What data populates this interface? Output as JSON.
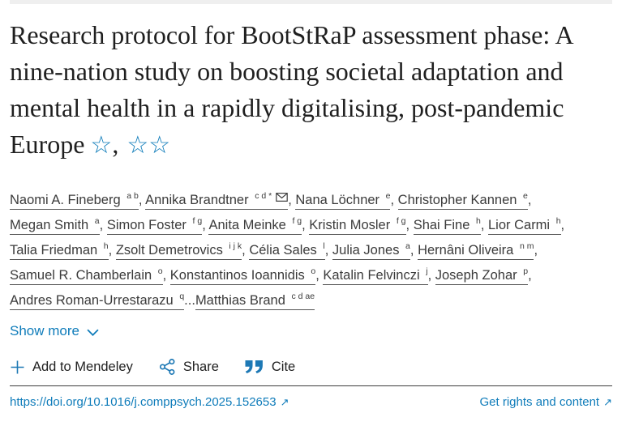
{
  "header": {
    "title": "Research protocol for BootStRaP assessment phase: A nine-nation study on boosting societal adaptation and mental health in a rapidly digitalising, post-pandemic Europe",
    "footnote_star": "☆",
    "footnote_sep": ", ",
    "footnote_star_double": "☆☆"
  },
  "authors": {
    "show_more_label": "Show more",
    "list": [
      {
        "name": "Naomi A. Fineberg",
        "sup": "a b",
        "sep": ", "
      },
      {
        "name": "Annika Brandtner",
        "sup": "c d *",
        "envelope": true,
        "sep": ", "
      },
      {
        "name": "Nana Löchner",
        "sup": "e",
        "sep": ", "
      },
      {
        "name": "Christopher Kannen",
        "sup": "e",
        "sep": ", "
      },
      {
        "name": "Megan Smith",
        "sup": "a",
        "sep": ", "
      },
      {
        "name": "Simon Foster",
        "sup": "f g",
        "sep": ", "
      },
      {
        "name": "Anita Meinke",
        "sup": "f g",
        "sep": ", "
      },
      {
        "name": "Kristin Mosler",
        "sup": "f g",
        "sep": ", "
      },
      {
        "name": "Shai Fine",
        "sup": "h",
        "sep": ", "
      },
      {
        "name": "Lior Carmi",
        "sup": "h",
        "sep": ", "
      },
      {
        "name": "Talia Friedman",
        "sup": "h",
        "sep": ", "
      },
      {
        "name": "Zsolt Demetrovics",
        "sup": "i j k",
        "sep": ", "
      },
      {
        "name": "Célia Sales",
        "sup": "l",
        "sep": ", "
      },
      {
        "name": "Julia Jones",
        "sup": "a",
        "sep": ", "
      },
      {
        "name": "Hernâni Oliveira",
        "sup": "n m",
        "sep": ", "
      },
      {
        "name": "Samuel R. Chamberlain",
        "sup": "o",
        "sep": ", "
      },
      {
        "name": "Konstantinos Ioannidis",
        "sup": "o",
        "sep": ", "
      },
      {
        "name": "Katalin Felvinczi",
        "sup": "j",
        "sep": ", "
      },
      {
        "name": "Joseph Zohar",
        "sup": "p",
        "sep": ", "
      },
      {
        "name": "Andres Roman-Urrestarazu",
        "sup": "q",
        "sep": "..."
      },
      {
        "name": "Matthias Brand",
        "sup": "c d ae",
        "sep": ""
      }
    ]
  },
  "actions": {
    "mendeley_label": "Add to Mendeley",
    "share_label": "Share",
    "cite_label": "Cite"
  },
  "footer": {
    "doi_link": "https://doi.org/10.1016/j.comppsych.2025.152653",
    "rights_label": "Get rights and content",
    "external_arrow": "↗"
  },
  "colors": {
    "link_blue": "#0f7cba",
    "icon_blue": "#1e79b5",
    "title_text": "#1f1f1f",
    "author_text": "#3b3b3b",
    "divider": "#3c3c3c",
    "top_strip": "#efefef"
  }
}
